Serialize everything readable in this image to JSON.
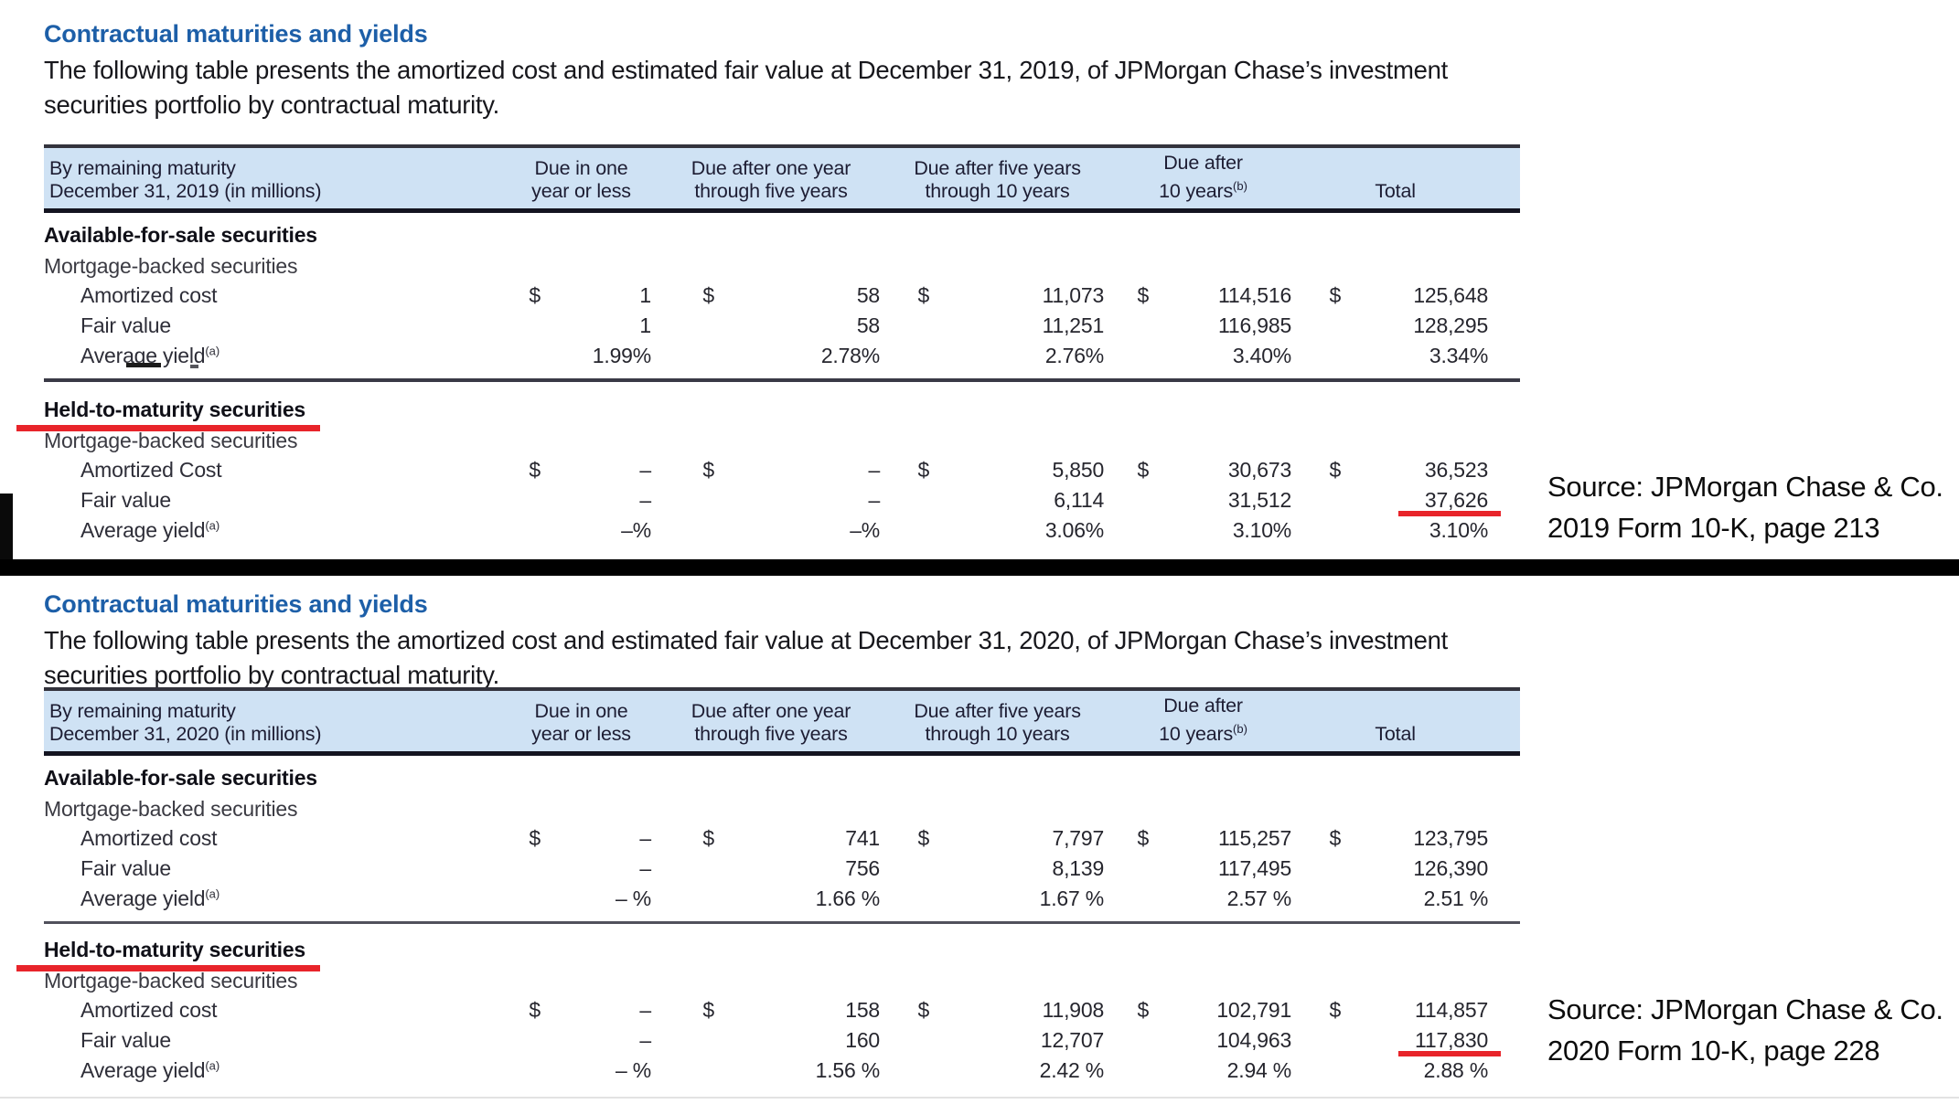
{
  "misc": {
    "currency_symbol": "$"
  },
  "colors": {
    "heading_blue": "#1d5fa8",
    "header_band_blue": "#cfe2f4",
    "annotation_red": "#e8242a",
    "divider_black": "#000000"
  },
  "sections": [
    {
      "heading": "Contractual maturities and yields",
      "intro_lines": [
        "The following table presents the amortized cost and estimated fair value at December 31, 2019, of JPMorgan Chase’s investment",
        "securities portfolio by contractual maturity."
      ],
      "source_lines": [
        "Source: JPMorgan Chase & Co.",
        "2019 Form 10-K, page 213"
      ],
      "table": {
        "header": {
          "left_lines": [
            "By remaining maturity",
            "December 31, 2019 (in millions)"
          ],
          "cols": [
            {
              "top": "Due in one",
              "bottom": "year or less",
              "sup": ""
            },
            {
              "top": "Due after one year",
              "bottom": "through five years",
              "sup": ""
            },
            {
              "top": "Due after five years",
              "bottom": "through 10 years",
              "sup": ""
            },
            {
              "top": "Due after",
              "bottom": "10 years",
              "sup": "(b)"
            },
            {
              "top": "",
              "bottom": "Total",
              "sup": ""
            }
          ]
        },
        "groups": [
          {
            "title": "Available-for-sale securities",
            "subtitle": "Mortgage-backed securities",
            "red_underline": false,
            "rows": [
              {
                "label": "Amortized cost",
                "sup": "",
                "dollar": true,
                "total_underline": false,
                "values": [
                  "1",
                  "58",
                  "11,073",
                  "114,516",
                  "125,648"
                ]
              },
              {
                "label": "Fair value",
                "sup": "",
                "dollar": false,
                "total_underline": false,
                "values": [
                  "1",
                  "58",
                  "11,251",
                  "116,985",
                  "128,295"
                ]
              },
              {
                "label": "Average yield",
                "sup": "(a)",
                "dollar": false,
                "total_underline": false,
                "values": [
                  "1.99%",
                  "2.78%",
                  "2.76%",
                  "3.40%",
                  "3.34%"
                ]
              }
            ]
          },
          {
            "title": "Held-to-maturity securities",
            "subtitle": "Mortgage-backed securities",
            "red_underline": true,
            "rows": [
              {
                "label": "Amortized Cost",
                "sup": "",
                "dollar": true,
                "total_underline": false,
                "values": [
                  "–",
                  "–",
                  "5,850",
                  "30,673",
                  "36,523"
                ]
              },
              {
                "label": "Fair value",
                "sup": "",
                "dollar": false,
                "total_underline": true,
                "values": [
                  "–",
                  "–",
                  "6,114",
                  "31,512",
                  "37,626"
                ]
              },
              {
                "label": "Average yield",
                "sup": "(a)",
                "dollar": false,
                "total_underline": false,
                "values": [
                  "–%",
                  "–%",
                  "3.06%",
                  "3.10%",
                  "3.10%"
                ]
              }
            ]
          }
        ]
      }
    },
    {
      "heading": "Contractual maturities and yields",
      "intro_lines": [
        "The following table presents the amortized cost and estimated fair value at December 31, 2020, of JPMorgan Chase’s investment",
        "securities portfolio by contractual maturity."
      ],
      "source_lines": [
        "Source: JPMorgan Chase & Co.",
        "2020 Form 10-K, page 228"
      ],
      "table": {
        "header": {
          "left_lines": [
            "By remaining maturity",
            "December 31, 2020 (in millions)"
          ],
          "cols": [
            {
              "top": "Due in one",
              "bottom": "year or less",
              "sup": ""
            },
            {
              "top": "Due after one year",
              "bottom": "through five years",
              "sup": ""
            },
            {
              "top": "Due after five years",
              "bottom": "through 10 years",
              "sup": ""
            },
            {
              "top": "Due after",
              "bottom": "10 years",
              "sup": "(b)"
            },
            {
              "top": "",
              "bottom": "Total",
              "sup": ""
            }
          ]
        },
        "groups": [
          {
            "title": "Available-for-sale securities",
            "subtitle": "Mortgage-backed securities",
            "red_underline": false,
            "rows": [
              {
                "label": "Amortized cost",
                "sup": "",
                "dollar": true,
                "total_underline": false,
                "values": [
                  "–",
                  "741",
                  "7,797",
                  "115,257",
                  "123,795"
                ]
              },
              {
                "label": "Fair value",
                "sup": "",
                "dollar": false,
                "total_underline": false,
                "values": [
                  "–",
                  "756",
                  "8,139",
                  "117,495",
                  "126,390"
                ]
              },
              {
                "label": "Average yield",
                "sup": "(a)",
                "dollar": false,
                "total_underline": false,
                "values": [
                  "– %",
                  "1.66 %",
                  "1.67 %",
                  "2.57 %",
                  "2.51 %"
                ]
              }
            ]
          },
          {
            "title": "Held-to-maturity securities",
            "subtitle": "Mortgage-backed securities",
            "red_underline": true,
            "rows": [
              {
                "label": "Amortized cost",
                "sup": "",
                "dollar": true,
                "total_underline": false,
                "values": [
                  "–",
                  "158",
                  "11,908",
                  "102,791",
                  "114,857"
                ]
              },
              {
                "label": "Fair value",
                "sup": "",
                "dollar": false,
                "total_underline": true,
                "values": [
                  "–",
                  "160",
                  "12,707",
                  "104,963",
                  "117,830"
                ]
              },
              {
                "label": "Average yield",
                "sup": "(a)",
                "dollar": false,
                "total_underline": false,
                "values": [
                  "– %",
                  "1.56 %",
                  "2.42 %",
                  "2.94 %",
                  "2.88 %"
                ]
              }
            ]
          }
        ]
      }
    }
  ]
}
